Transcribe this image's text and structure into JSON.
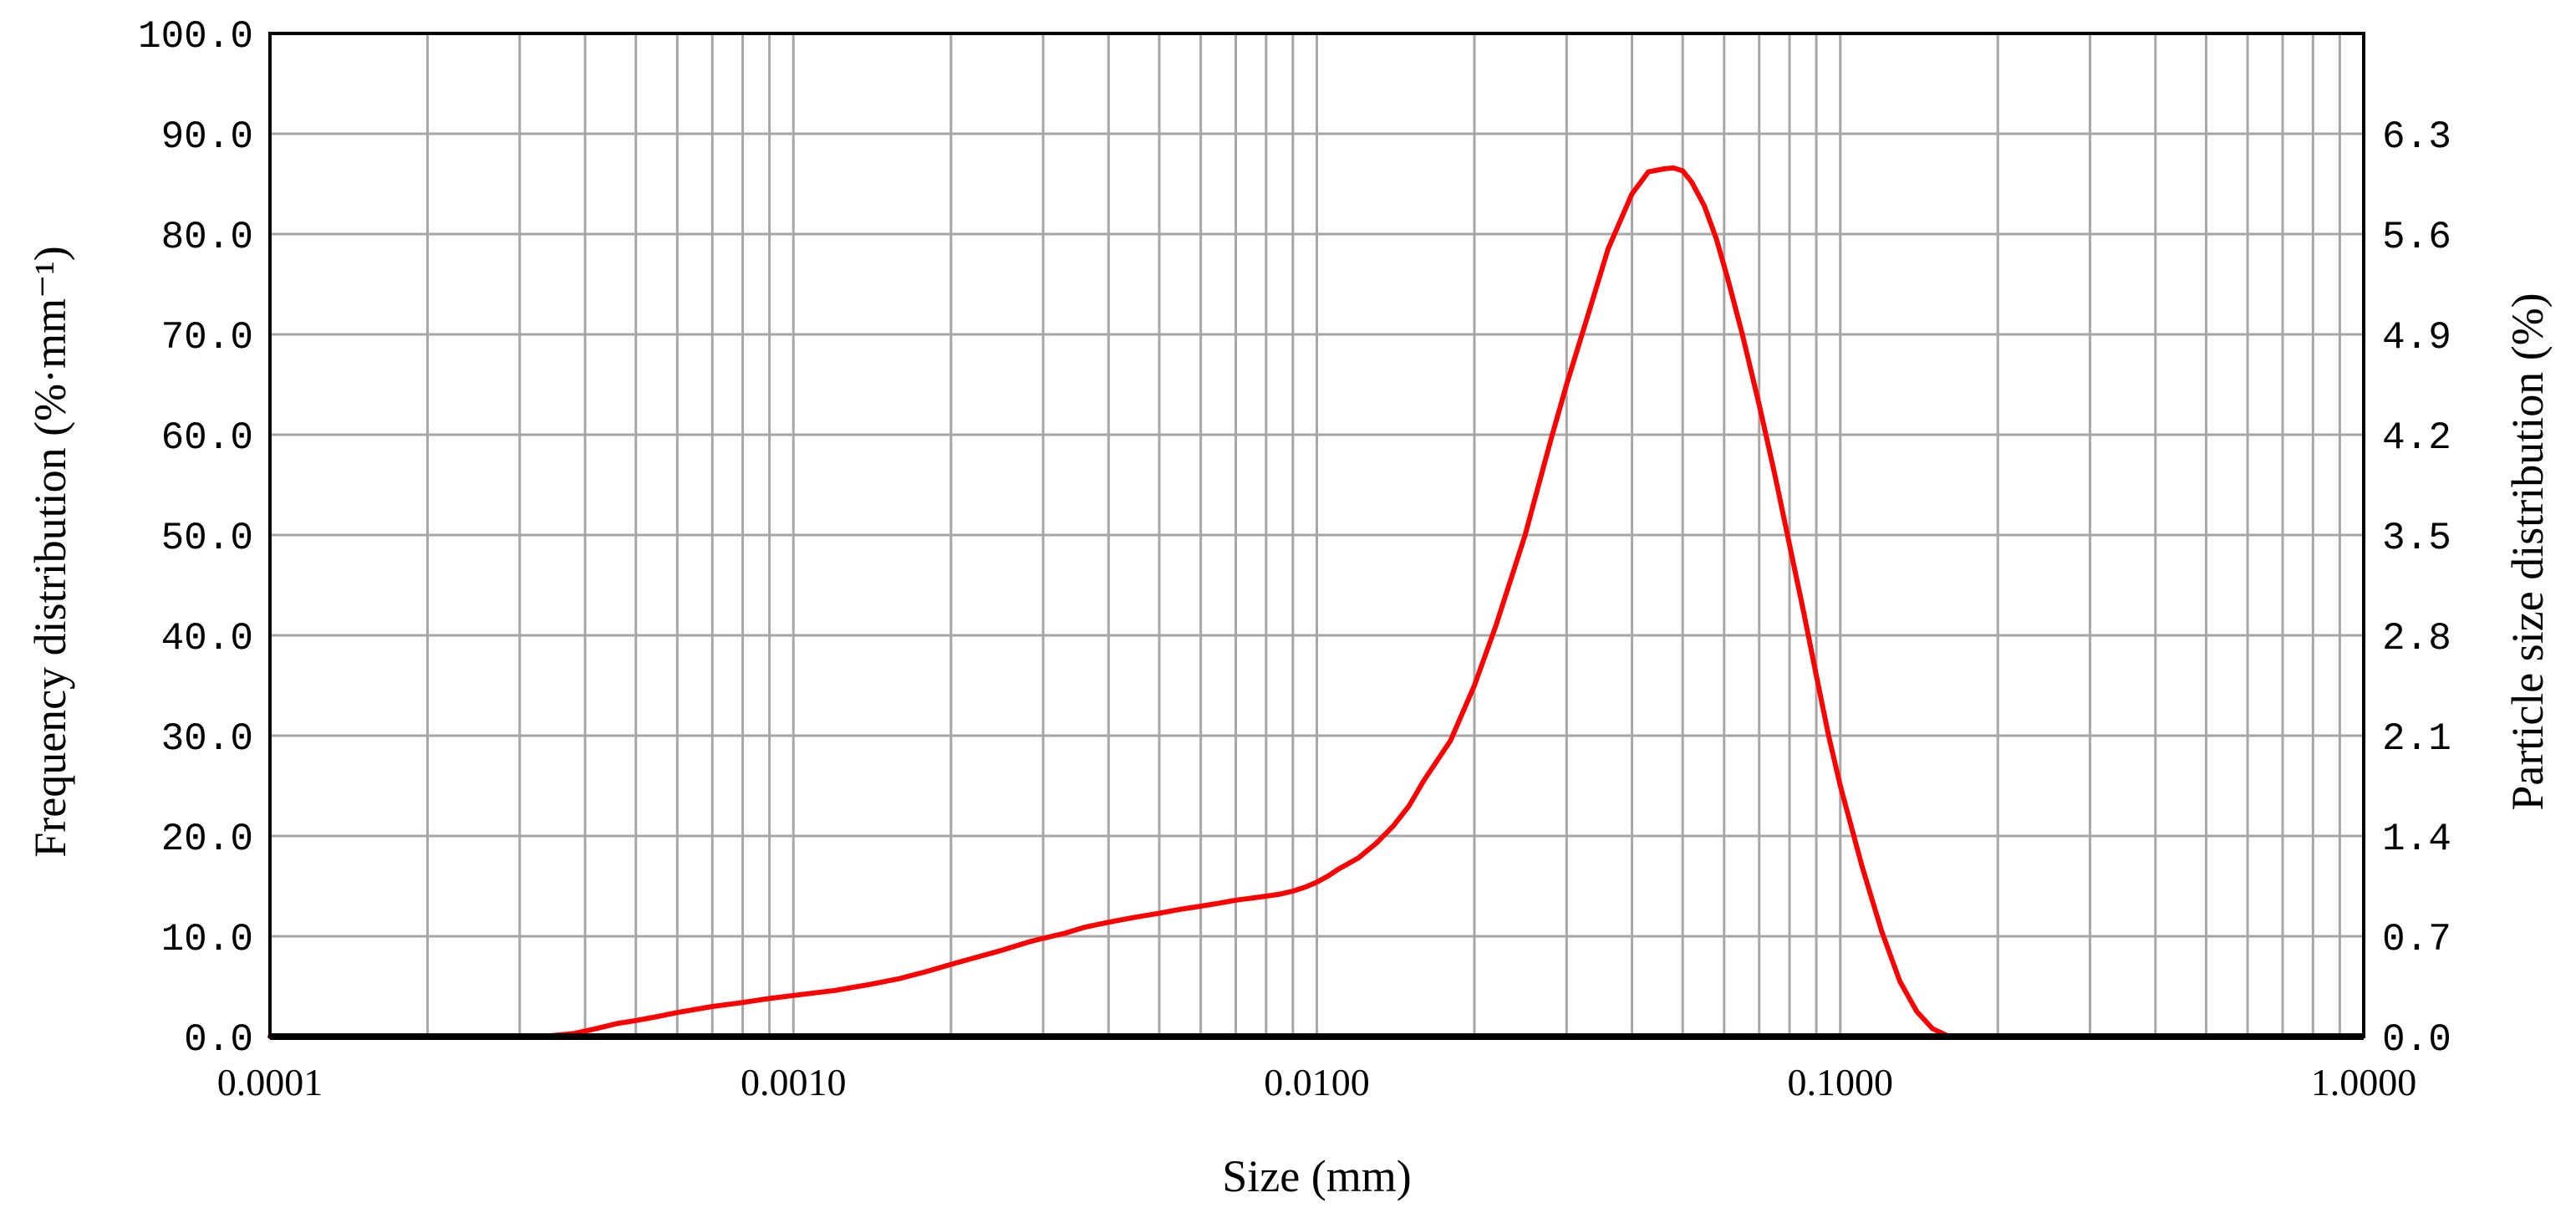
{
  "chart_data": {
    "type": "line",
    "xlabel": "Size (mm)",
    "ylabel_left": "Frequency distribution (%·mm⁻¹)",
    "ylabel_right": "Particle size distribution (%)",
    "x_scale": "log",
    "xlim": [
      0.0001,
      1.0
    ],
    "ylim_left": [
      0,
      100
    ],
    "ylim_right": [
      0,
      7.0
    ],
    "grid": true,
    "legend": "none",
    "line_color": "#ff0000",
    "x_ticks": [
      {
        "value": 0.0001,
        "label": "0.0001"
      },
      {
        "value": 0.001,
        "label": "0.0010"
      },
      {
        "value": 0.01,
        "label": "0.0100"
      },
      {
        "value": 0.1,
        "label": "0.1000"
      },
      {
        "value": 1.0,
        "label": "1.0000"
      }
    ],
    "y_left_ticks": [
      {
        "value": 0,
        "label": "0.0"
      },
      {
        "value": 10,
        "label": "10.0"
      },
      {
        "value": 20,
        "label": "20.0"
      },
      {
        "value": 30,
        "label": "30.0"
      },
      {
        "value": 40,
        "label": "40.0"
      },
      {
        "value": 50,
        "label": "50.0"
      },
      {
        "value": 60,
        "label": "60.0"
      },
      {
        "value": 70,
        "label": "70.0"
      },
      {
        "value": 80,
        "label": "80.0"
      },
      {
        "value": 90,
        "label": "90.0"
      },
      {
        "value": 100,
        "label": "100.0"
      }
    ],
    "y_right_ticks": [
      {
        "value": 0,
        "label": "0.0"
      },
      {
        "value": 0.7,
        "label": "0.7"
      },
      {
        "value": 1.4,
        "label": "1.4"
      },
      {
        "value": 2.1,
        "label": "2.1"
      },
      {
        "value": 2.8,
        "label": "2.8"
      },
      {
        "value": 3.5,
        "label": "3.5"
      },
      {
        "value": 4.2,
        "label": "4.2"
      },
      {
        "value": 4.9,
        "label": "4.9"
      },
      {
        "value": 5.6,
        "label": "5.6"
      },
      {
        "value": 6.3,
        "label": "6.3"
      }
    ],
    "series": [
      {
        "x": [
          0.0001,
          0.0002,
          0.00033,
          0.00038,
          0.00042,
          0.00046,
          0.0005,
          0.00055,
          0.0006,
          0.0007,
          0.0008,
          0.0009,
          0.001,
          0.0012,
          0.0014,
          0.0016,
          0.0018,
          0.002,
          0.0022,
          0.0025,
          0.0028,
          0.003,
          0.0033,
          0.0036,
          0.004,
          0.0045,
          0.005,
          0.0055,
          0.006,
          0.0065,
          0.007,
          0.0075,
          0.008,
          0.0085,
          0.009,
          0.0095,
          0.01,
          0.0105,
          0.011,
          0.012,
          0.013,
          0.014,
          0.015,
          0.016,
          0.018,
          0.02,
          0.022,
          0.025,
          0.028,
          0.03,
          0.033,
          0.036,
          0.04,
          0.043,
          0.046,
          0.048,
          0.05,
          0.052,
          0.055,
          0.058,
          0.061,
          0.065,
          0.07,
          0.075,
          0.08,
          0.085,
          0.09,
          0.095,
          0.1,
          0.11,
          0.12,
          0.13,
          0.14,
          0.15,
          0.16,
          0.17,
          0.18,
          0.2,
          0.3,
          0.5,
          0.75
        ],
        "y": [
          0,
          0,
          0,
          0.3,
          0.8,
          1.3,
          1.6,
          2.0,
          2.4,
          3.0,
          3.4,
          3.8,
          4.1,
          4.6,
          5.2,
          5.8,
          6.5,
          7.2,
          7.8,
          8.6,
          9.4,
          9.8,
          10.3,
          10.9,
          11.4,
          11.9,
          12.3,
          12.7,
          13.0,
          13.3,
          13.6,
          13.8,
          14.0,
          14.2,
          14.5,
          14.9,
          15.4,
          16.0,
          16.7,
          17.8,
          19.3,
          21.0,
          23.0,
          25.5,
          29.5,
          35.0,
          41.0,
          50.0,
          59.5,
          65.0,
          72.0,
          78.5,
          84.0,
          86.2,
          86.5,
          86.6,
          86.3,
          85.2,
          82.8,
          79.5,
          75.5,
          70.0,
          63.0,
          56.0,
          49.0,
          42.5,
          36.0,
          30.0,
          25.0,
          17.0,
          10.5,
          5.5,
          2.5,
          0.8,
          0.1,
          0,
          0,
          0,
          0,
          0,
          0
        ]
      }
    ]
  }
}
